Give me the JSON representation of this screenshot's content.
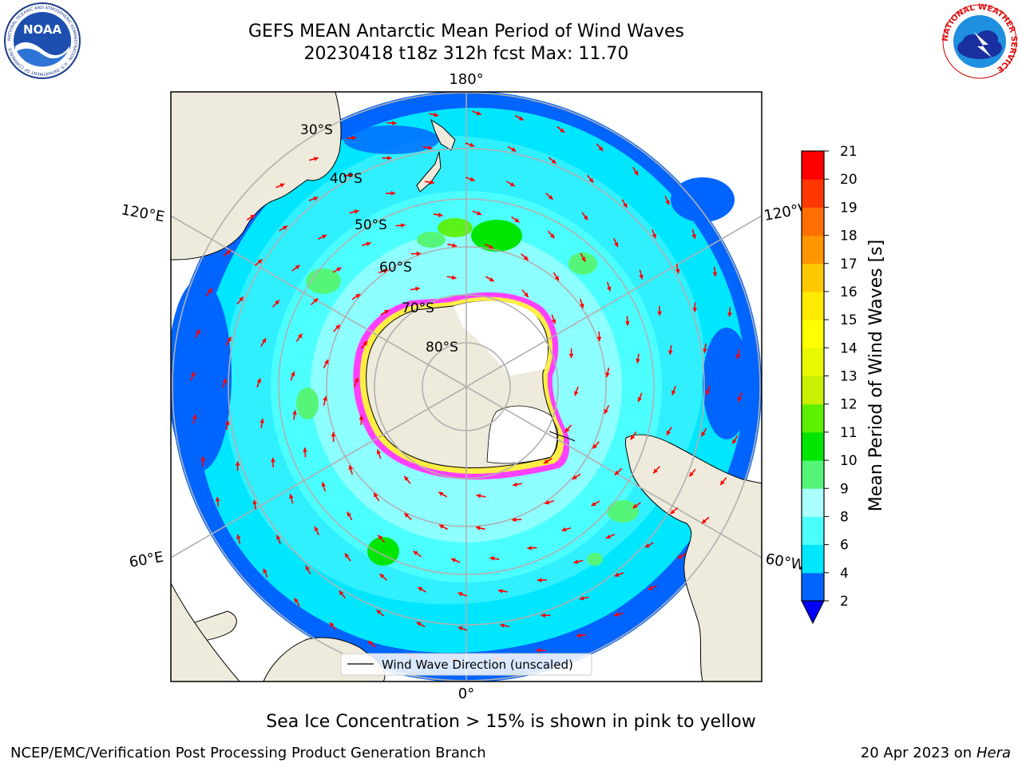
{
  "header": {
    "title_line1": "GEFS MEAN Antarctic Mean Period of Wind Waves",
    "title_line2": "20230418 t18z 312h fcst   Max: 11.70"
  },
  "logos": {
    "left": {
      "icon": "noaa-logo-icon",
      "text": "NOAA",
      "ring_text": "NATIONAL OCEANIC AND ATMOSPHERIC ADMINISTRATION · U.S. DEPARTMENT OF COMMERCE"
    },
    "right": {
      "icon": "nws-logo-icon",
      "ring_text": "NATIONAL WEATHER SERVICE"
    }
  },
  "map": {
    "projection": "south-polar-stereographic",
    "longitude_labels": {
      "top": "180°",
      "bottom": "0°",
      "upper_left": "120°E",
      "upper_right": "120°W",
      "lower_left": "60°E",
      "lower_right": "60°W"
    },
    "latitude_labels": [
      "30°S",
      "40°S",
      "50°S",
      "60°S",
      "70°S",
      "80°S"
    ],
    "legend": {
      "label": "Wind Wave Direction (unscaled)"
    },
    "colors": {
      "land": "#efebdc",
      "ice_pink": "#ff33ff",
      "ice_yellow": "#ffee44",
      "arrow": "#ff0000",
      "gridline": "#b0b0b0"
    }
  },
  "colorbar": {
    "label": "Mean Period of Wind Waves [s]",
    "ticks": [
      "2",
      "4",
      "6",
      "8",
      "9",
      "10",
      "11",
      "12",
      "13",
      "14",
      "15",
      "16",
      "17",
      "18",
      "19",
      "20",
      "21"
    ],
    "colors": [
      "#0064ff",
      "#00e6ff",
      "#4cffff",
      "#aaffff",
      "#55f57a",
      "#00e600",
      "#5cf000",
      "#c8f000",
      "#e8f800",
      "#ffff00",
      "#ffea00",
      "#ffc800",
      "#ff9600",
      "#ff6e00",
      "#ff3700",
      "#ff0000"
    ],
    "under_color": "#0000ff"
  },
  "caption": "Sea Ice Concentration > 15% is shown in pink to yellow",
  "footer": {
    "left": "NCEP/EMC/Verification Post Processing Product Generation Branch",
    "right_date": "20 Apr 2023 on",
    "right_host": "Hera"
  }
}
